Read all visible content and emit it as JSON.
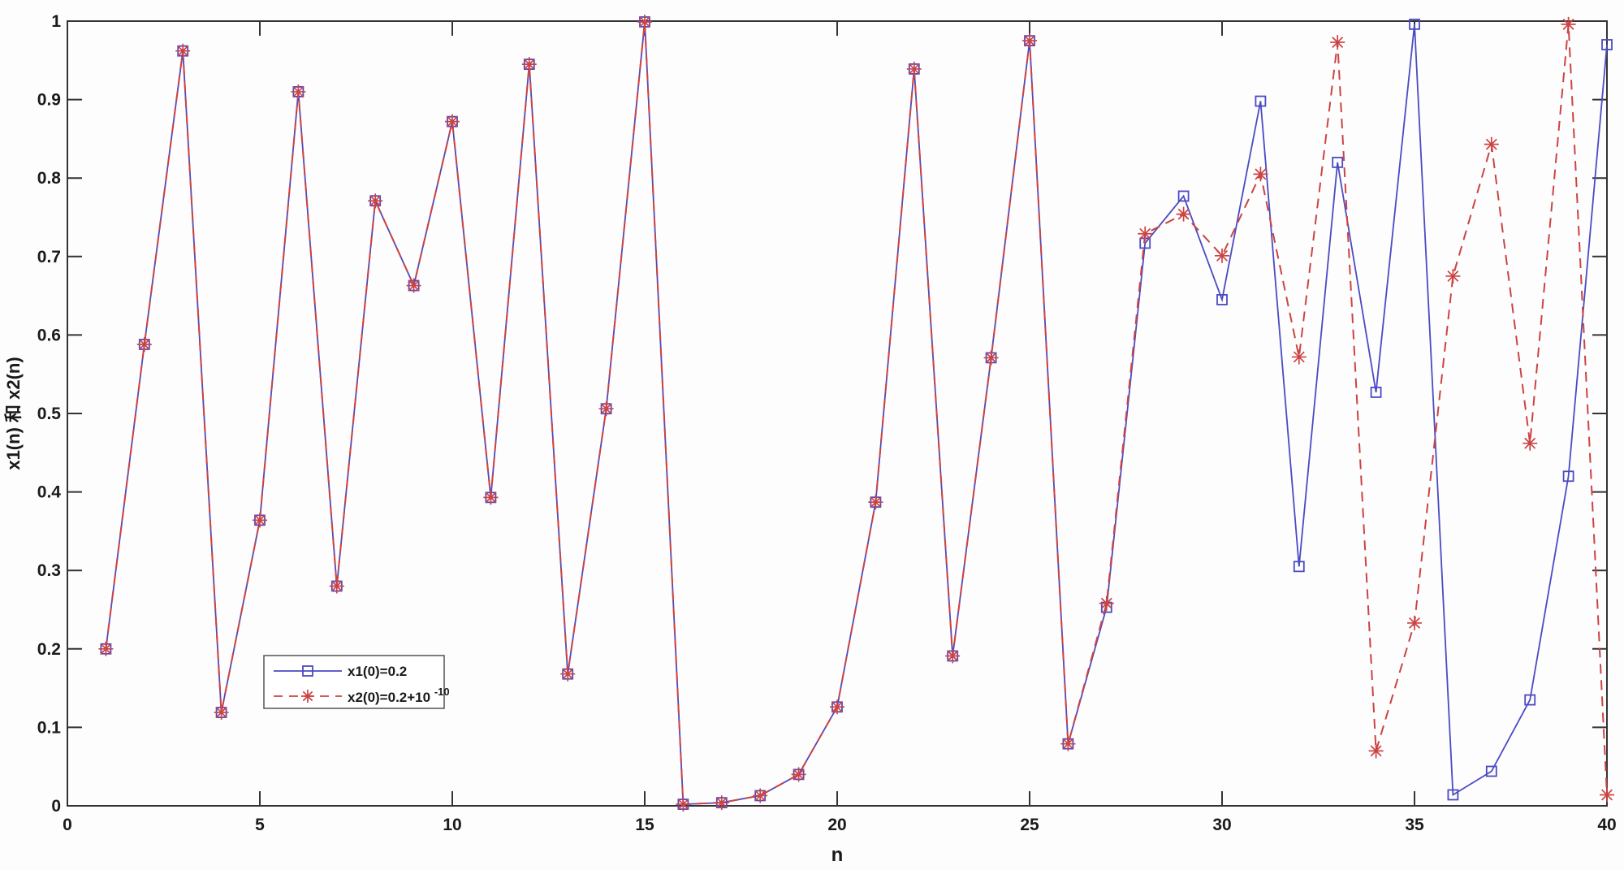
{
  "figure": {
    "background": "#fdfdfd",
    "axis_color": "#333333",
    "text_color": "#1a1a1a"
  },
  "labels": {
    "x": "n",
    "y": "x1(n) 和 x2(n)"
  },
  "legend": {
    "border_color": "#555555",
    "items": [
      {
        "label": "x1(0)=0.2",
        "color": "#4A4AC4",
        "line": "solid",
        "marker": "square"
      },
      {
        "label_base": "x2(0)=0.2+10",
        "label_sup": "-10",
        "color": "#CC4343",
        "line": "dashed",
        "marker": "asterisk"
      }
    ]
  },
  "chart_data": {
    "type": "line",
    "title": "",
    "xlabel": "n",
    "ylabel": "x1(n) 和 x2(n)",
    "xlim": [
      0,
      40
    ],
    "ylim": [
      0,
      1
    ],
    "grid": false,
    "legend_position": "inside-lower-left",
    "xticks": [
      0,
      5,
      10,
      15,
      20,
      25,
      30,
      35,
      40
    ],
    "xtick_labels": [
      "0",
      "5",
      "10",
      "15",
      "20",
      "25",
      "30",
      "35",
      "40"
    ],
    "yticks": [
      0,
      0.1,
      0.2,
      0.3,
      0.4,
      0.5,
      0.6,
      0.7,
      0.8,
      0.9,
      1
    ],
    "ytick_labels": [
      "0",
      "0.1",
      "0.2",
      "0.3",
      "0.4",
      "0.5",
      "0.6",
      "0.7",
      "0.8",
      "0.9",
      "1"
    ],
    "x": [
      1,
      2,
      3,
      4,
      5,
      6,
      7,
      8,
      9,
      10,
      11,
      12,
      13,
      14,
      15,
      16,
      17,
      18,
      19,
      20,
      21,
      22,
      23,
      24,
      25,
      26,
      27,
      28,
      29,
      30,
      31,
      32,
      33,
      34,
      35,
      36,
      37,
      38,
      39,
      40
    ],
    "series": [
      {
        "name": "x1(0)=0.2",
        "color": "#4A4AC4",
        "line": "solid",
        "marker": "square",
        "values": [
          0.2,
          0.588,
          0.962,
          0.119,
          0.364,
          0.91,
          0.28,
          0.771,
          0.663,
          0.872,
          0.393,
          0.945,
          0.168,
          0.506,
          0.999,
          0.002,
          0.004,
          0.013,
          0.04,
          0.126,
          0.387,
          0.939,
          0.191,
          0.571,
          0.975,
          0.079,
          0.253,
          0.717,
          0.777,
          0.645,
          0.898,
          0.305,
          0.82,
          0.527,
          0.996,
          0.014,
          0.044,
          0.135,
          0.42,
          0.97
        ]
      },
      {
        "name": "x2(0)=0.2+10^-10",
        "color": "#CC4343",
        "line": "dashed",
        "marker": "asterisk",
        "values": [
          0.2,
          0.588,
          0.962,
          0.119,
          0.364,
          0.91,
          0.28,
          0.771,
          0.663,
          0.872,
          0.393,
          0.945,
          0.168,
          0.506,
          0.999,
          0.002,
          0.004,
          0.013,
          0.04,
          0.126,
          0.387,
          0.939,
          0.191,
          0.571,
          0.975,
          0.079,
          0.258,
          0.729,
          0.754,
          0.701,
          0.805,
          0.572,
          0.973,
          0.07,
          0.233,
          0.675,
          0.843,
          0.462,
          0.996,
          0.014
        ]
      }
    ]
  }
}
